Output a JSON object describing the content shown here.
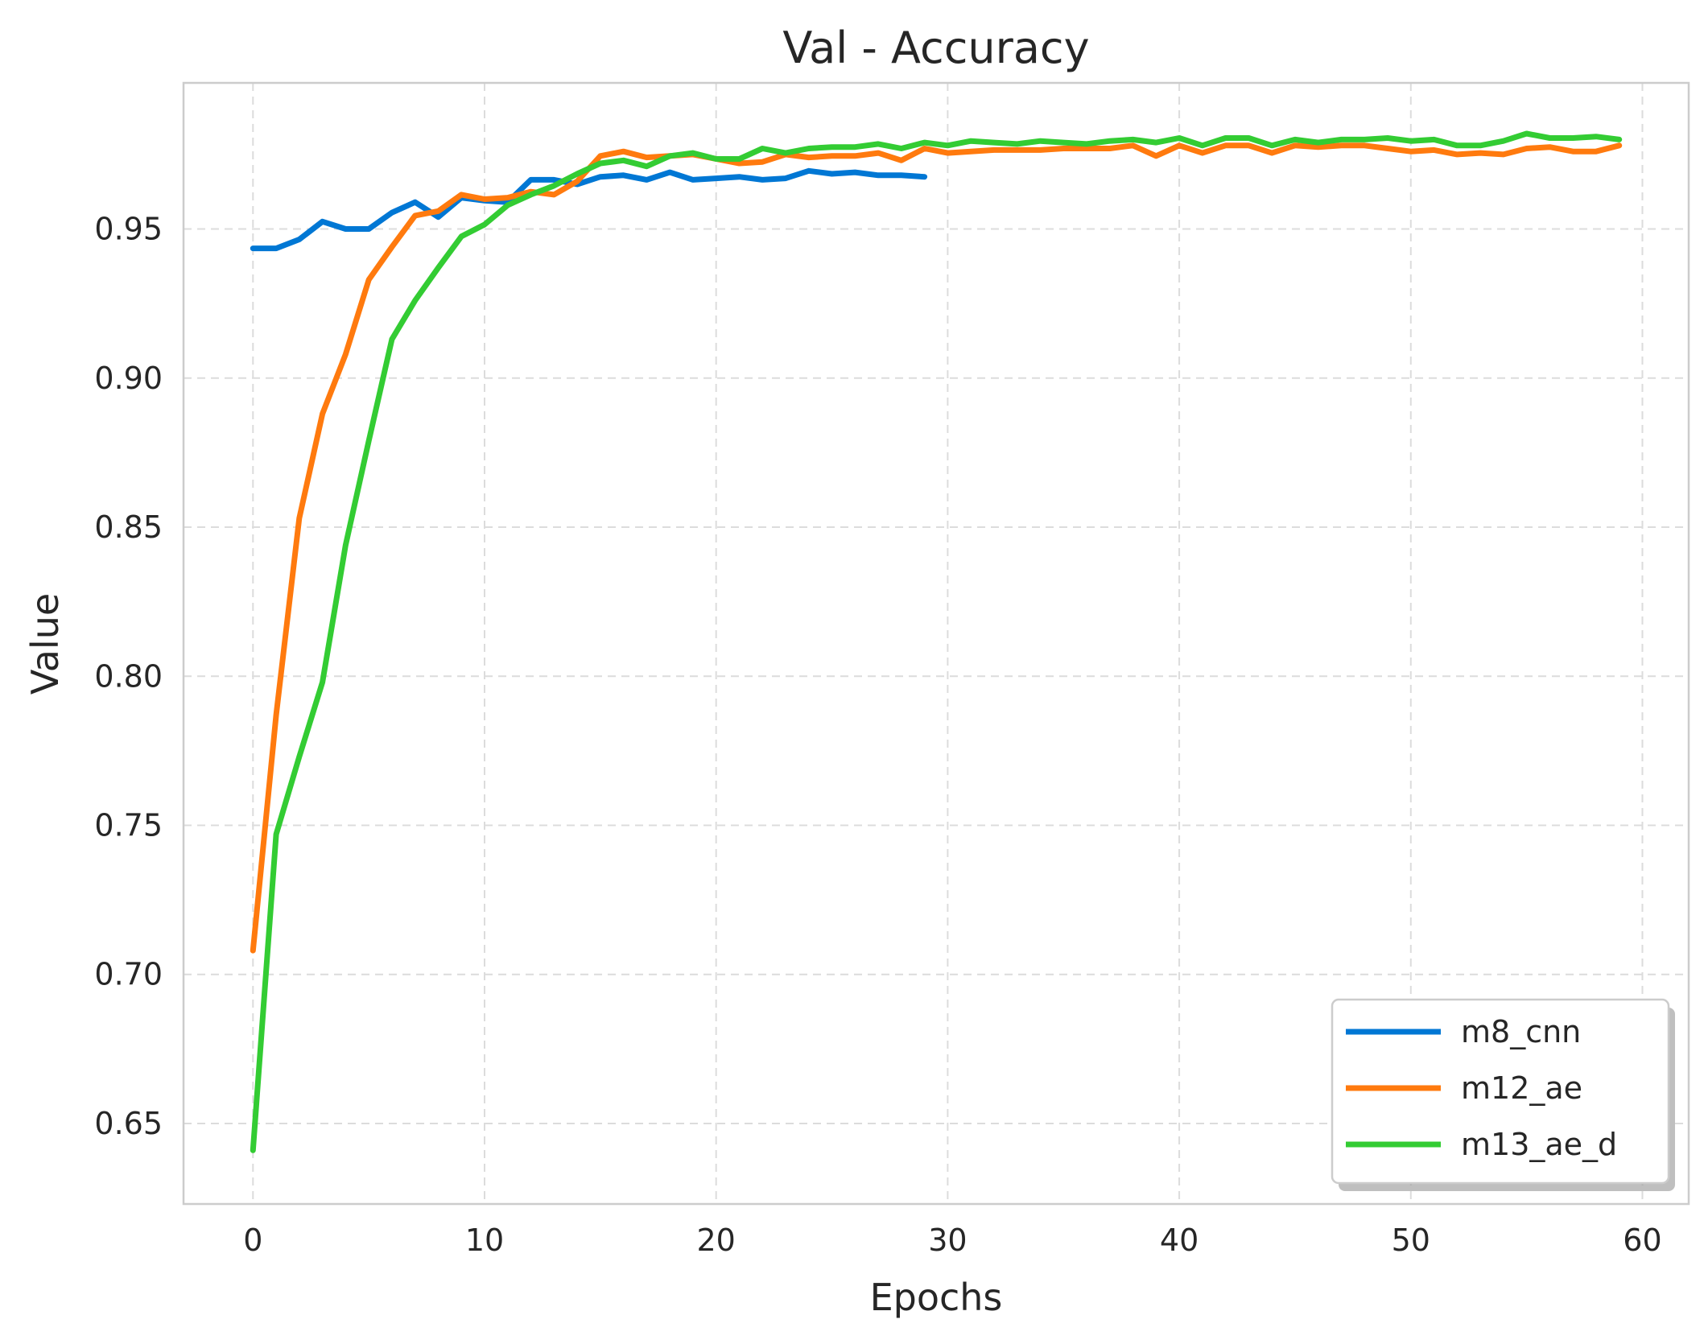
{
  "chart_data": {
    "type": "line",
    "title": "Val - Accuracy",
    "xlabel": "Epochs",
    "ylabel": "Value",
    "xlim": [
      -3,
      62
    ],
    "ylim": [
      0.623,
      0.999
    ],
    "x_ticks": [
      0,
      10,
      20,
      30,
      40,
      50,
      60
    ],
    "x_tick_labels": [
      "0",
      "10",
      "20",
      "30",
      "40",
      "50",
      "60"
    ],
    "y_ticks": [
      0.65,
      0.7,
      0.75,
      0.8,
      0.85,
      0.9,
      0.95
    ],
    "y_tick_labels": [
      "0.65",
      "0.70",
      "0.75",
      "0.80",
      "0.85",
      "0.90",
      "0.95"
    ],
    "grid": true,
    "legend_position": "bottom-right",
    "series": [
      {
        "name": "m8_cnn",
        "color": "#0077d4",
        "x": [
          0,
          1,
          2,
          3,
          4,
          5,
          6,
          7,
          8,
          9,
          10,
          11,
          12,
          13,
          14,
          15,
          16,
          17,
          18,
          19,
          20,
          21,
          22,
          23,
          24,
          25,
          26,
          27,
          28,
          29
        ],
        "y": [
          0.9435,
          0.9435,
          0.9465,
          0.9525,
          0.95,
          0.95,
          0.9555,
          0.959,
          0.954,
          0.9605,
          0.9595,
          0.959,
          0.9665,
          0.9665,
          0.965,
          0.9675,
          0.968,
          0.9665,
          0.969,
          0.9665,
          0.967,
          0.9675,
          0.9665,
          0.967,
          0.9695,
          0.9685,
          0.969,
          0.968,
          0.968,
          0.9675
        ]
      },
      {
        "name": "m12_ae",
        "color": "#ff7a0e",
        "x": [
          0,
          1,
          2,
          3,
          4,
          5,
          6,
          7,
          8,
          9,
          10,
          11,
          12,
          13,
          14,
          15,
          16,
          17,
          18,
          19,
          20,
          21,
          22,
          23,
          24,
          25,
          26,
          27,
          28,
          29,
          30,
          31,
          32,
          33,
          34,
          35,
          36,
          37,
          38,
          39,
          40,
          41,
          42,
          43,
          44,
          45,
          46,
          47,
          48,
          49,
          50,
          51,
          52,
          53,
          54,
          55,
          56,
          57,
          58,
          59
        ],
        "y": [
          0.708,
          0.787,
          0.853,
          0.888,
          0.908,
          0.933,
          0.944,
          0.9545,
          0.956,
          0.9615,
          0.96,
          0.9605,
          0.9625,
          0.9615,
          0.966,
          0.9745,
          0.976,
          0.974,
          0.9745,
          0.975,
          0.9735,
          0.972,
          0.9725,
          0.975,
          0.974,
          0.9745,
          0.9745,
          0.9755,
          0.973,
          0.977,
          0.9755,
          0.976,
          0.9765,
          0.9765,
          0.9765,
          0.977,
          0.977,
          0.977,
          0.978,
          0.9745,
          0.978,
          0.9755,
          0.978,
          0.978,
          0.9755,
          0.978,
          0.9775,
          0.978,
          0.978,
          0.977,
          0.976,
          0.9765,
          0.975,
          0.9755,
          0.975,
          0.977,
          0.9775,
          0.976,
          0.976,
          0.978
        ]
      },
      {
        "name": "m13_ae_d",
        "color": "#33cc33",
        "x": [
          0,
          1,
          2,
          3,
          4,
          5,
          6,
          7,
          8,
          9,
          10,
          11,
          12,
          13,
          14,
          15,
          16,
          17,
          18,
          19,
          20,
          21,
          22,
          23,
          24,
          25,
          26,
          27,
          28,
          29,
          30,
          31,
          32,
          33,
          34,
          35,
          36,
          37,
          38,
          39,
          40,
          41,
          42,
          43,
          44,
          45,
          46,
          47,
          48,
          49,
          50,
          51,
          52,
          53,
          54,
          55,
          56,
          57,
          58,
          59
        ],
        "y": [
          0.641,
          0.747,
          0.773,
          0.798,
          0.844,
          0.879,
          0.913,
          0.926,
          0.937,
          0.9475,
          0.9515,
          0.958,
          0.9615,
          0.9645,
          0.9685,
          0.972,
          0.973,
          0.971,
          0.9745,
          0.9755,
          0.9735,
          0.9735,
          0.977,
          0.9755,
          0.977,
          0.9775,
          0.9775,
          0.9785,
          0.977,
          0.979,
          0.978,
          0.9795,
          0.979,
          0.9785,
          0.9795,
          0.979,
          0.9785,
          0.9795,
          0.98,
          0.979,
          0.9805,
          0.978,
          0.9805,
          0.9805,
          0.978,
          0.98,
          0.979,
          0.98,
          0.98,
          0.9805,
          0.9795,
          0.98,
          0.978,
          0.978,
          0.9795,
          0.982,
          0.9805,
          0.9805,
          0.981,
          0.98
        ]
      }
    ]
  }
}
